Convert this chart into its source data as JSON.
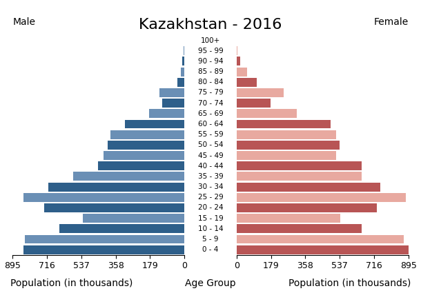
{
  "title": "Kazakhstan - 2016",
  "male_label": "Male",
  "female_label": "Female",
  "xlabel_left": "Population (in thousands)",
  "xlabel_center": "Age Group",
  "xlabel_right": "Population (in thousands)",
  "age_groups": [
    "0 - 4",
    "5 - 9",
    "10 - 14",
    "15 - 19",
    "20 - 24",
    "25 - 29",
    "30 - 34",
    "35 - 39",
    "40 - 44",
    "45 - 49",
    "50 - 54",
    "55 - 59",
    "60 - 64",
    "65 - 69",
    "70 - 74",
    "75 - 79",
    "80 - 84",
    "85 - 89",
    "90 - 94",
    "95 - 99",
    "100+"
  ],
  "male_values": [
    840,
    830,
    650,
    530,
    730,
    840,
    710,
    580,
    450,
    420,
    400,
    385,
    310,
    185,
    115,
    130,
    35,
    18,
    12,
    4,
    2
  ],
  "female_values": [
    895,
    870,
    650,
    540,
    730,
    880,
    750,
    650,
    650,
    520,
    535,
    520,
    490,
    315,
    175,
    245,
    105,
    55,
    18,
    5,
    2
  ],
  "male_colors": [
    "#2e5f8a",
    "#6a8fb5",
    "#2e5f8a",
    "#6a8fb5",
    "#2e5f8a",
    "#6a8fb5",
    "#2e5f8a",
    "#6a8fb5",
    "#2e5f8a",
    "#6a8fb5",
    "#2e5f8a",
    "#6a8fb5",
    "#2e5f8a",
    "#6a8fb5",
    "#2e5f8a",
    "#6a8fb5",
    "#2e5f8a",
    "#6a8fb5",
    "#2e5f8a",
    "#6a8fb5",
    "#2e5f8a"
  ],
  "female_colors": [
    "#b85555",
    "#e8a9a0",
    "#b85555",
    "#e8a9a0",
    "#b85555",
    "#e8a9a0",
    "#b85555",
    "#e8a9a0",
    "#b85555",
    "#e8a9a0",
    "#b85555",
    "#e8a9a0",
    "#b85555",
    "#e8a9a0",
    "#b85555",
    "#e8a9a0",
    "#b85555",
    "#e8a9a0",
    "#b85555",
    "#e8a9a0",
    "#b85555"
  ],
  "xlim": 895,
  "bg_color": "#ffffff",
  "title_fontsize": 16,
  "label_fontsize": 10,
  "tick_fontsize": 9,
  "age_label_fontsize": 7.5
}
